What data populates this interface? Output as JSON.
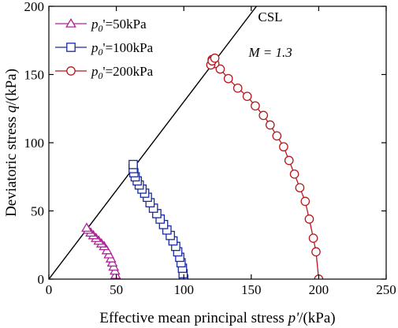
{
  "chart_data": {
    "type": "scatter",
    "xlabel_main": "Effective mean principal stress ",
    "xlabel_var": "p'",
    "xlabel_unit": "/(kPa)",
    "ylabel_main": "Deviatoric stress ",
    "ylabel_var": "q",
    "ylabel_unit": "/(kPa)",
    "xlim": [
      0,
      250
    ],
    "ylim": [
      0,
      200
    ],
    "xticks": [
      0,
      50,
      100,
      150,
      200,
      250
    ],
    "yticks": [
      0,
      50,
      100,
      150,
      200
    ],
    "grid": false,
    "legend_placement": "top-left",
    "csl": {
      "label": "CSL",
      "slope_label": "M = 1.3",
      "slope": 1.3
    },
    "series": [
      {
        "name": "p0'=50kPa",
        "legend_prefix": "p",
        "legend_sub": "0",
        "legend_suffix": "'=50kPa",
        "marker": "triangle",
        "color": "#b0209a",
        "x": [
          50,
          49.5,
          49,
          48,
          47,
          46,
          44.5,
          43,
          41,
          39,
          37,
          35,
          33,
          31,
          29,
          28
        ],
        "y": [
          0,
          3,
          6,
          9,
          12,
          15,
          18,
          21,
          24,
          26,
          28,
          30,
          32,
          34,
          36,
          37.5
        ]
      },
      {
        "name": "p0'=100kPa",
        "legend_prefix": "p",
        "legend_sub": "0",
        "legend_suffix": "'=100kPa",
        "marker": "square",
        "color": "#1a2a9a",
        "x": [
          100,
          99.5,
          99,
          98,
          97,
          95.5,
          94,
          92,
          90,
          87.5,
          85,
          82.5,
          80,
          77.5,
          75,
          73,
          71,
          69,
          67,
          65.5,
          64,
          63,
          62.5,
          62.5
        ],
        "y": [
          0,
          4,
          8,
          12,
          16,
          20,
          24,
          28,
          32,
          36,
          40,
          44,
          48,
          52,
          56,
          60,
          63,
          66,
          69,
          72,
          75,
          78,
          81,
          84
        ]
      },
      {
        "name": "p0'=200kPa",
        "legend_prefix": "p",
        "legend_sub": "0",
        "legend_suffix": "'=200kPa",
        "marker": "circle",
        "color": "#b5191f",
        "x": [
          200,
          198,
          196,
          193,
          190,
          186,
          182,
          178,
          174,
          169,
          164,
          159,
          153,
          147,
          140,
          133,
          127,
          123,
          121,
          120,
          121,
          123
        ],
        "y": [
          0,
          20,
          30,
          44,
          57,
          67,
          77,
          87,
          97,
          105,
          113,
          120,
          127,
          134,
          140,
          147,
          154,
          158,
          161,
          157,
          160,
          162
        ]
      }
    ]
  }
}
